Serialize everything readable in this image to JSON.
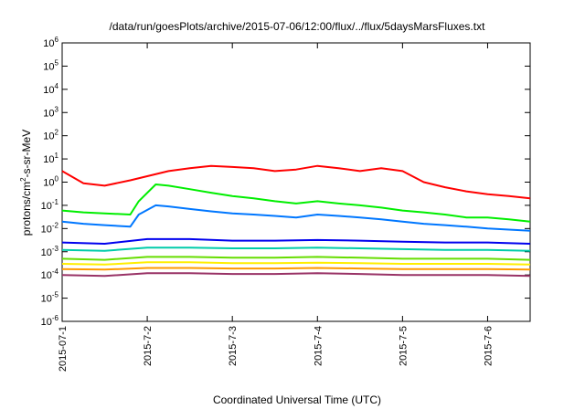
{
  "chart_data": {
    "type": "line",
    "title": "/data/run/goesPlots/archive/2015-07-06/12:00/flux/../flux/5daysMarsFluxes.txt",
    "xlabel": "Coordinated Universal Time (UTC)",
    "ylabel": {
      "prefix": "protons/cm",
      "sup": "2",
      "suffix": "-s-sr-MeV"
    },
    "ylog": true,
    "ylim": [
      1e-06,
      1000000.0
    ],
    "x_ticks": [
      {
        "label": "2015-07-1",
        "day": 0
      },
      {
        "label": "2015-7-2",
        "day": 1
      },
      {
        "label": "2015-7-3",
        "day": 2
      },
      {
        "label": "2015-7-4",
        "day": 3
      },
      {
        "label": "2015-7-5",
        "day": 4
      },
      {
        "label": "2015-7-6",
        "day": 5
      }
    ],
    "xlim_days": [
      0,
      5.5
    ],
    "y_ticks": [
      -6,
      -5,
      -4,
      -3,
      -2,
      -1,
      0,
      1,
      2,
      3,
      4,
      5,
      6
    ],
    "series": [
      {
        "color": "#ff0000",
        "x": [
          0,
          0.25,
          0.5,
          0.8,
          1.0,
          1.25,
          1.5,
          1.75,
          2.0,
          2.25,
          2.5,
          2.75,
          3.0,
          3.25,
          3.5,
          3.75,
          4.0,
          4.25,
          4.5,
          4.75,
          5.0,
          5.25,
          5.5
        ],
        "y": [
          3,
          0.9,
          0.7,
          1.2,
          1.8,
          3.0,
          4.0,
          5.0,
          4.5,
          4.0,
          3.0,
          3.5,
          5.0,
          4.0,
          3.0,
          4.0,
          3.0,
          1.0,
          0.6,
          0.4,
          0.3,
          0.25,
          0.2
        ]
      },
      {
        "color": "#00ee00",
        "x": [
          0,
          0.25,
          0.5,
          0.8,
          0.9,
          1.1,
          1.25,
          1.5,
          1.75,
          2.0,
          2.25,
          2.5,
          2.75,
          3.0,
          3.25,
          3.5,
          3.75,
          4.0,
          4.25,
          4.5,
          4.75,
          5.0,
          5.25,
          5.5
        ],
        "y": [
          0.06,
          0.05,
          0.045,
          0.04,
          0.15,
          0.8,
          0.7,
          0.5,
          0.35,
          0.25,
          0.2,
          0.15,
          0.12,
          0.15,
          0.12,
          0.1,
          0.08,
          0.06,
          0.05,
          0.04,
          0.03,
          0.03,
          0.025,
          0.02
        ]
      },
      {
        "color": "#0077ff",
        "x": [
          0,
          0.25,
          0.5,
          0.8,
          0.9,
          1.1,
          1.25,
          1.5,
          1.75,
          2.0,
          2.25,
          2.5,
          2.75,
          3.0,
          3.25,
          3.5,
          3.75,
          4.0,
          4.25,
          4.5,
          4.75,
          5.0,
          5.25,
          5.5
        ],
        "y": [
          0.02,
          0.016,
          0.014,
          0.012,
          0.04,
          0.1,
          0.09,
          0.07,
          0.055,
          0.045,
          0.04,
          0.035,
          0.03,
          0.04,
          0.035,
          0.03,
          0.025,
          0.02,
          0.016,
          0.014,
          0.012,
          0.01,
          0.009,
          0.008
        ]
      },
      {
        "color": "#0000ee",
        "x": [
          0,
          0.5,
          1.0,
          1.5,
          2.0,
          2.5,
          3.0,
          3.5,
          4.0,
          4.5,
          5.0,
          5.5
        ],
        "y": [
          0.0025,
          0.0022,
          0.0035,
          0.0035,
          0.003,
          0.003,
          0.0032,
          0.003,
          0.0027,
          0.0025,
          0.0025,
          0.0022
        ]
      },
      {
        "color": "#00ccaa",
        "x": [
          0,
          0.5,
          1.0,
          1.5,
          2.0,
          2.5,
          3.0,
          3.5,
          4.0,
          4.5,
          5.0,
          5.5
        ],
        "y": [
          0.0012,
          0.0011,
          0.0015,
          0.0015,
          0.0014,
          0.0014,
          0.0015,
          0.0014,
          0.0013,
          0.0012,
          0.0012,
          0.0011
        ]
      },
      {
        "color": "#66dd00",
        "x": [
          0,
          0.5,
          1.0,
          1.5,
          2.0,
          2.5,
          3.0,
          3.5,
          4.0,
          4.5,
          5.0,
          5.5
        ],
        "y": [
          0.0005,
          0.00045,
          0.0006,
          0.0006,
          0.00055,
          0.00055,
          0.0006,
          0.00055,
          0.0005,
          0.0005,
          0.0005,
          0.00045
        ]
      },
      {
        "color": "#ffee00",
        "x": [
          0,
          0.5,
          1.0,
          1.5,
          2.0,
          2.5,
          3.0,
          3.5,
          4.0,
          4.5,
          5.0,
          5.5
        ],
        "y": [
          0.0003,
          0.00028,
          0.00035,
          0.00035,
          0.00032,
          0.00032,
          0.00034,
          0.00032,
          0.0003,
          0.0003,
          0.0003,
          0.00028
        ]
      },
      {
        "color": "#ff9900",
        "x": [
          0,
          0.5,
          1.0,
          1.5,
          2.0,
          2.5,
          3.0,
          3.5,
          4.0,
          4.5,
          5.0,
          5.5
        ],
        "y": [
          0.00018,
          0.00017,
          0.0002,
          0.0002,
          0.00019,
          0.00019,
          0.0002,
          0.00019,
          0.00018,
          0.00018,
          0.00018,
          0.00017
        ]
      },
      {
        "color": "#993366",
        "x": [
          0,
          0.5,
          1.0,
          1.5,
          2.0,
          2.5,
          3.0,
          3.5,
          4.0,
          4.5,
          5.0,
          5.5
        ],
        "y": [
          0.0001,
          9e-05,
          0.00012,
          0.00012,
          0.00011,
          0.00011,
          0.00012,
          0.00011,
          0.0001,
          0.0001,
          0.0001,
          9e-05
        ]
      }
    ]
  }
}
